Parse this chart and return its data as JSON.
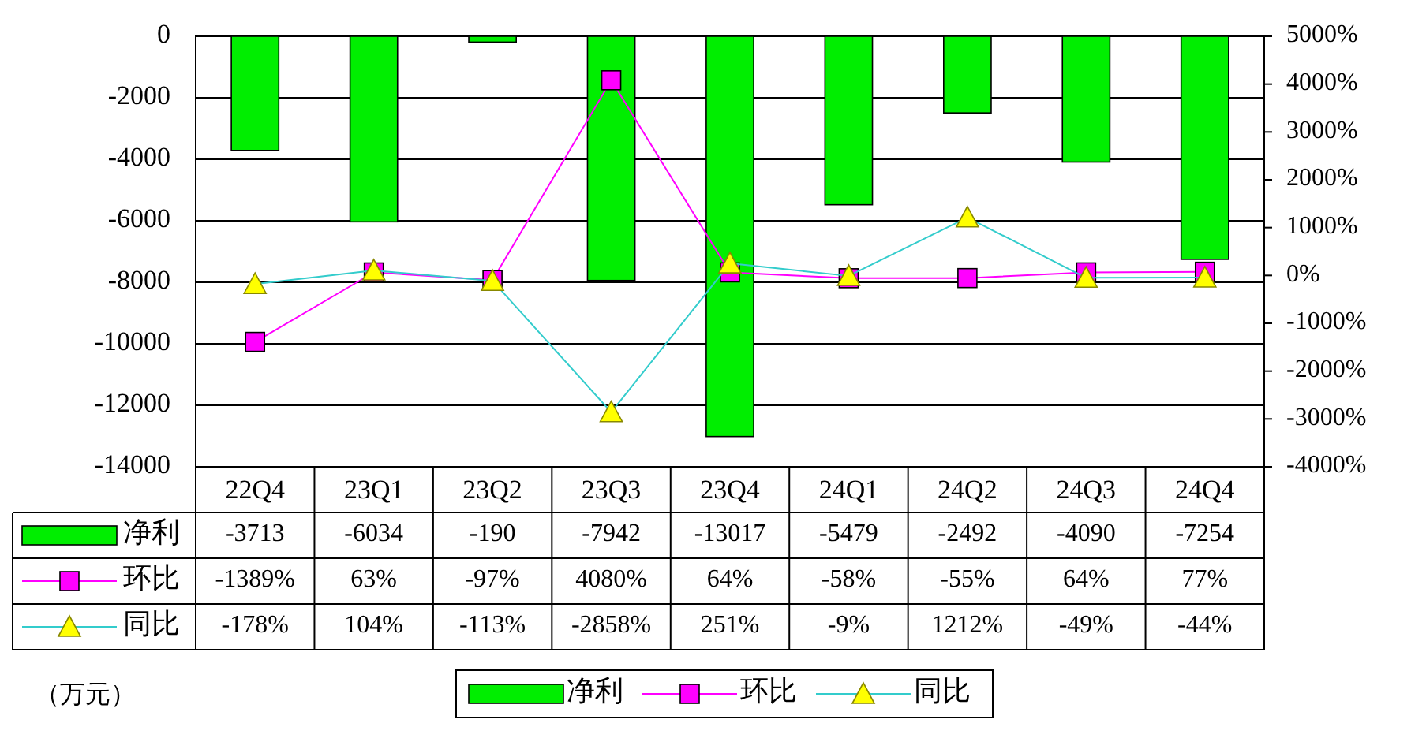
{
  "chart_data": {
    "type": "bar",
    "categories": [
      "22Q4",
      "23Q1",
      "23Q2",
      "23Q3",
      "23Q4",
      "24Q1",
      "24Q2",
      "24Q3",
      "24Q4"
    ],
    "series": [
      {
        "name": "净利",
        "color": "#00ee00",
        "values": [
          -3713,
          -6034,
          -190,
          -7942,
          -13017,
          -5479,
          -2492,
          -4090,
          -7254
        ],
        "value_labels": [
          "-3713",
          "-6034",
          "-190",
          "-7942",
          "-13017",
          "-5479",
          "-2492",
          "-4090",
          "-7254"
        ]
      },
      {
        "name": "环比",
        "type": "line",
        "axis": "y2",
        "marker": "square",
        "color": "#ff00ff",
        "values": [
          -1389,
          63,
          -97,
          4080,
          64,
          -58,
          -55,
          64,
          77
        ],
        "value_labels": [
          "-1389%",
          "63%",
          "-97%",
          "4080%",
          "64%",
          "-58%",
          "-55%",
          "64%",
          "77%"
        ]
      },
      {
        "name": "同比",
        "type": "line",
        "axis": "y2",
        "marker": "triangle",
        "color": "#33cccc",
        "values": [
          -178,
          104,
          -113,
          -2858,
          251,
          -9,
          1212,
          -49,
          -44
        ],
        "value_labels": [
          "-178%",
          "104%",
          "-113%",
          "-2858%",
          "251%",
          "-9%",
          "1212%",
          "-49%",
          "-44%"
        ]
      }
    ],
    "ylim": [
      -14000,
      0
    ],
    "yticks": [
      -14000,
      -12000,
      -10000,
      -8000,
      -6000,
      -4000,
      -2000,
      0
    ],
    "y2lim": [
      -4000,
      5000
    ],
    "y2ticks": [
      {
        "value": -4000,
        "label": "-4000%"
      },
      {
        "value": -3000,
        "label": "-3000%"
      },
      {
        "value": -2000,
        "label": "-2000%"
      },
      {
        "value": -1000,
        "label": "-1000%"
      },
      {
        "value": 0,
        "label": "0%"
      },
      {
        "value": 1000,
        "label": "1000%"
      },
      {
        "value": 2000,
        "label": "2000%"
      },
      {
        "value": 3000,
        "label": "3000%"
      },
      {
        "value": 4000,
        "label": "4000%"
      },
      {
        "value": 5000,
        "label": "5000%"
      }
    ],
    "grid": "y",
    "legend": "bottom",
    "annotations": [
      "（万元）"
    ]
  }
}
